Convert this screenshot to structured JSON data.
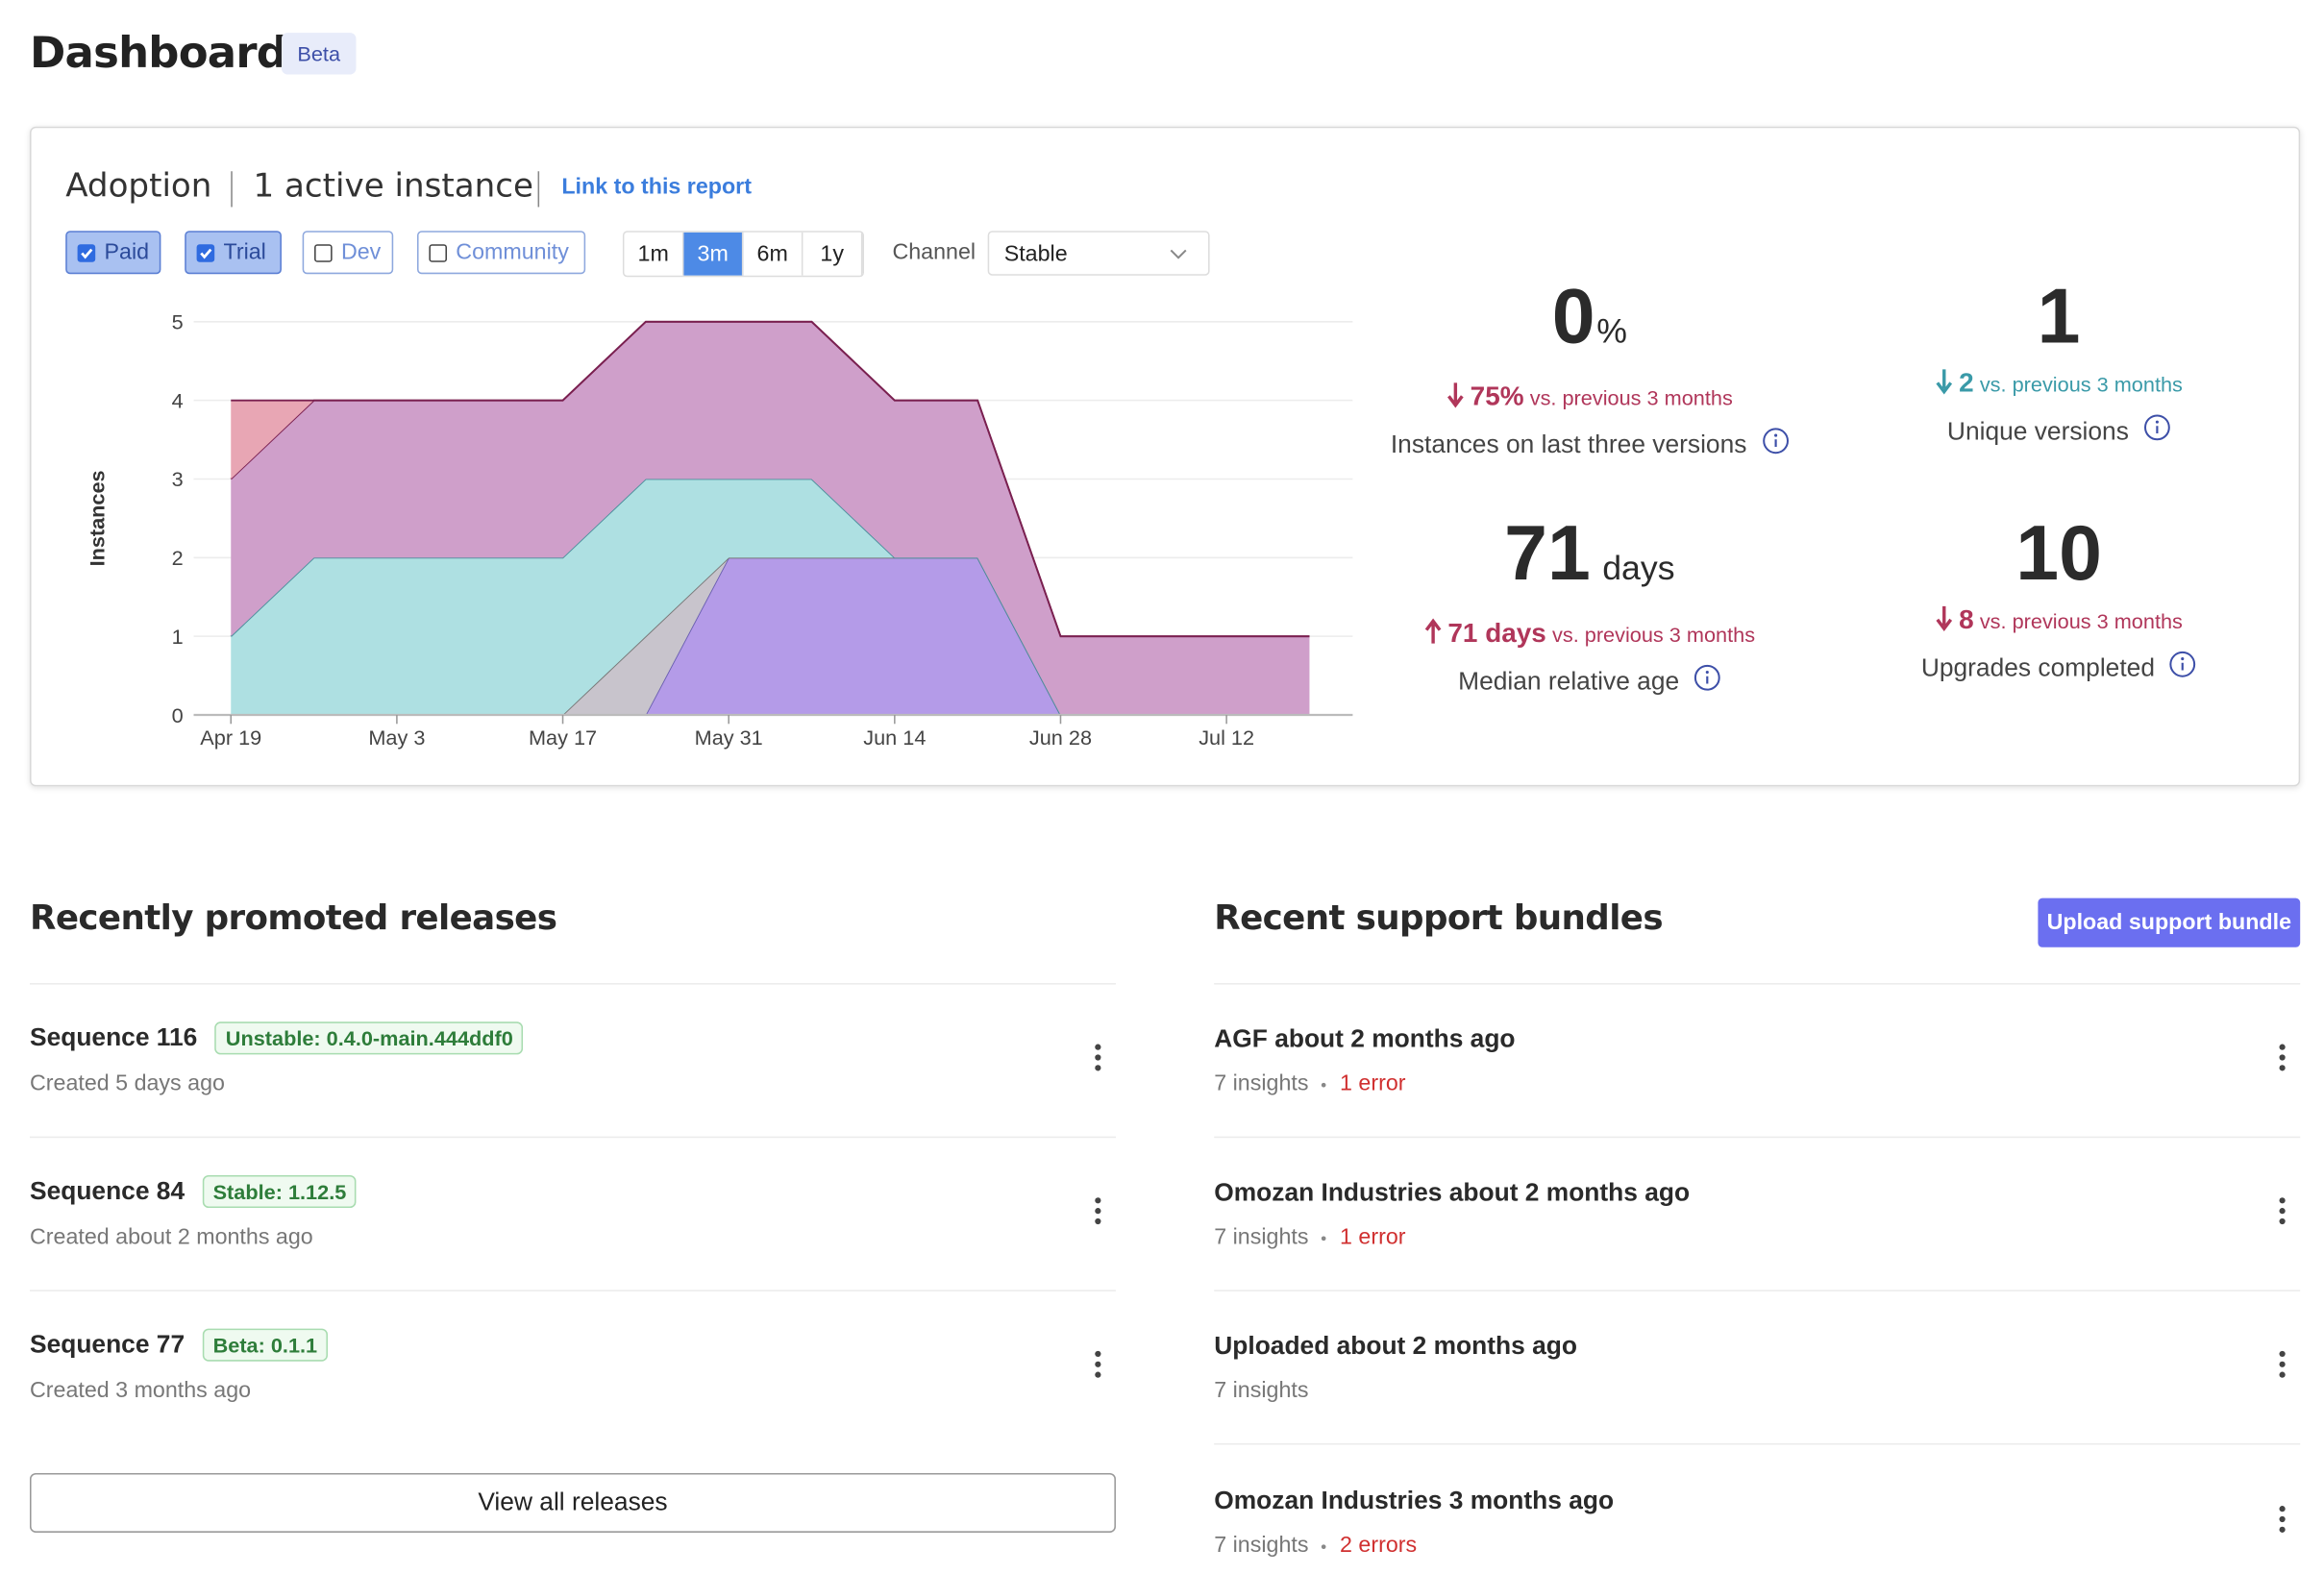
{
  "header": {
    "title": "Dashboard",
    "badge": "Beta"
  },
  "adoption": {
    "title": "Adoption",
    "subtitle": "1 active instance",
    "link": "Link to this report",
    "filters": [
      {
        "label": "Paid",
        "checked": true
      },
      {
        "label": "Trial",
        "checked": true
      },
      {
        "label": "Dev",
        "checked": false
      },
      {
        "label": "Community",
        "checked": false
      }
    ],
    "ranges": [
      "1m",
      "3m",
      "6m",
      "1y"
    ],
    "active_range": "3m",
    "channel_label": "Channel",
    "channel_value": "Stable"
  },
  "chart_data": {
    "type": "stacked_area",
    "ylabel": "Instances",
    "categories": [
      "Apr 19",
      null,
      "May 3",
      null,
      "May 17",
      null,
      "May 31",
      null,
      "Jun 14",
      null,
      "Jun 28",
      null,
      "Jul 12",
      null
    ],
    "series": [
      {
        "color": "#b49be8",
        "stroke": "#6a5fb0",
        "values": [
          0,
          0,
          0,
          0,
          0,
          0,
          2,
          2,
          2,
          2,
          0,
          0,
          0,
          0
        ]
      },
      {
        "color": "#c8c4cc",
        "stroke": "#777777",
        "values": [
          0,
          0,
          0,
          0,
          0,
          1,
          0,
          0,
          0,
          0,
          0,
          0,
          0,
          0
        ]
      },
      {
        "color": "#aee0e2",
        "stroke": "#4a8f9c",
        "values": [
          1,
          2,
          2,
          2,
          2,
          2,
          1,
          1,
          0,
          0,
          0,
          0,
          0,
          0
        ]
      },
      {
        "color": "#cf9fca",
        "stroke": "#7a2050",
        "values": [
          2,
          2,
          2,
          2,
          2,
          2,
          2,
          2,
          2,
          2,
          1,
          1,
          1,
          1
        ]
      },
      {
        "color": "#e8a6b4",
        "stroke": "#7a2050",
        "values": [
          1,
          0,
          0,
          0,
          0,
          0,
          0,
          0,
          0,
          0,
          0,
          0,
          0,
          0
        ]
      }
    ],
    "ylim": [
      0,
      5
    ],
    "yticks": [
      0,
      1,
      2,
      3,
      4,
      5
    ],
    "grid": true
  },
  "stats": [
    {
      "value": "0",
      "unit": "%",
      "delta": "75%",
      "delta_text": "vs. previous 3 months",
      "direction": "down",
      "color": "#b0365a",
      "label": "Instances on last three versions"
    },
    {
      "value": "1",
      "delta": "2",
      "delta_text": "vs. previous 3 months",
      "direction": "down",
      "color": "#3a9aa8",
      "label": "Unique versions"
    },
    {
      "value": "71",
      "unit": "days",
      "delta": "71 days",
      "delta_text": "vs. previous 3 months",
      "direction": "up",
      "color": "#b0365a",
      "label": "Median relative age"
    },
    {
      "value": "10",
      "delta": "8",
      "delta_text": "vs. previous 3 months",
      "direction": "down",
      "color": "#b0365a",
      "label": "Upgrades completed"
    }
  ],
  "releases": {
    "title": "Recently promoted releases",
    "button": "View all releases",
    "items": [
      {
        "name": "Sequence 116",
        "tag": "Unstable: 0.4.0-main.444ddf0",
        "created": "Created 5 days ago"
      },
      {
        "name": "Sequence 84",
        "tag": "Stable: 1.12.5",
        "created": "Created about 2 months ago"
      },
      {
        "name": "Sequence 77",
        "tag": "Beta: 0.1.1",
        "created": "Created 3 months ago"
      }
    ]
  },
  "bundles": {
    "title": "Recent support bundles",
    "button": "Upload support bundle",
    "items": [
      {
        "name": "AGF about 2 months ago",
        "insights": "7 insights",
        "errors": "1 error"
      },
      {
        "name": "Omozan Industries about 2 months ago",
        "insights": "7 insights",
        "errors": "1 error"
      },
      {
        "name": "Uploaded about 2 months ago",
        "insights": "7 insights"
      },
      {
        "name": "Omozan Industries 3 months ago",
        "insights": "7 insights",
        "errors": "2 errors"
      }
    ]
  }
}
